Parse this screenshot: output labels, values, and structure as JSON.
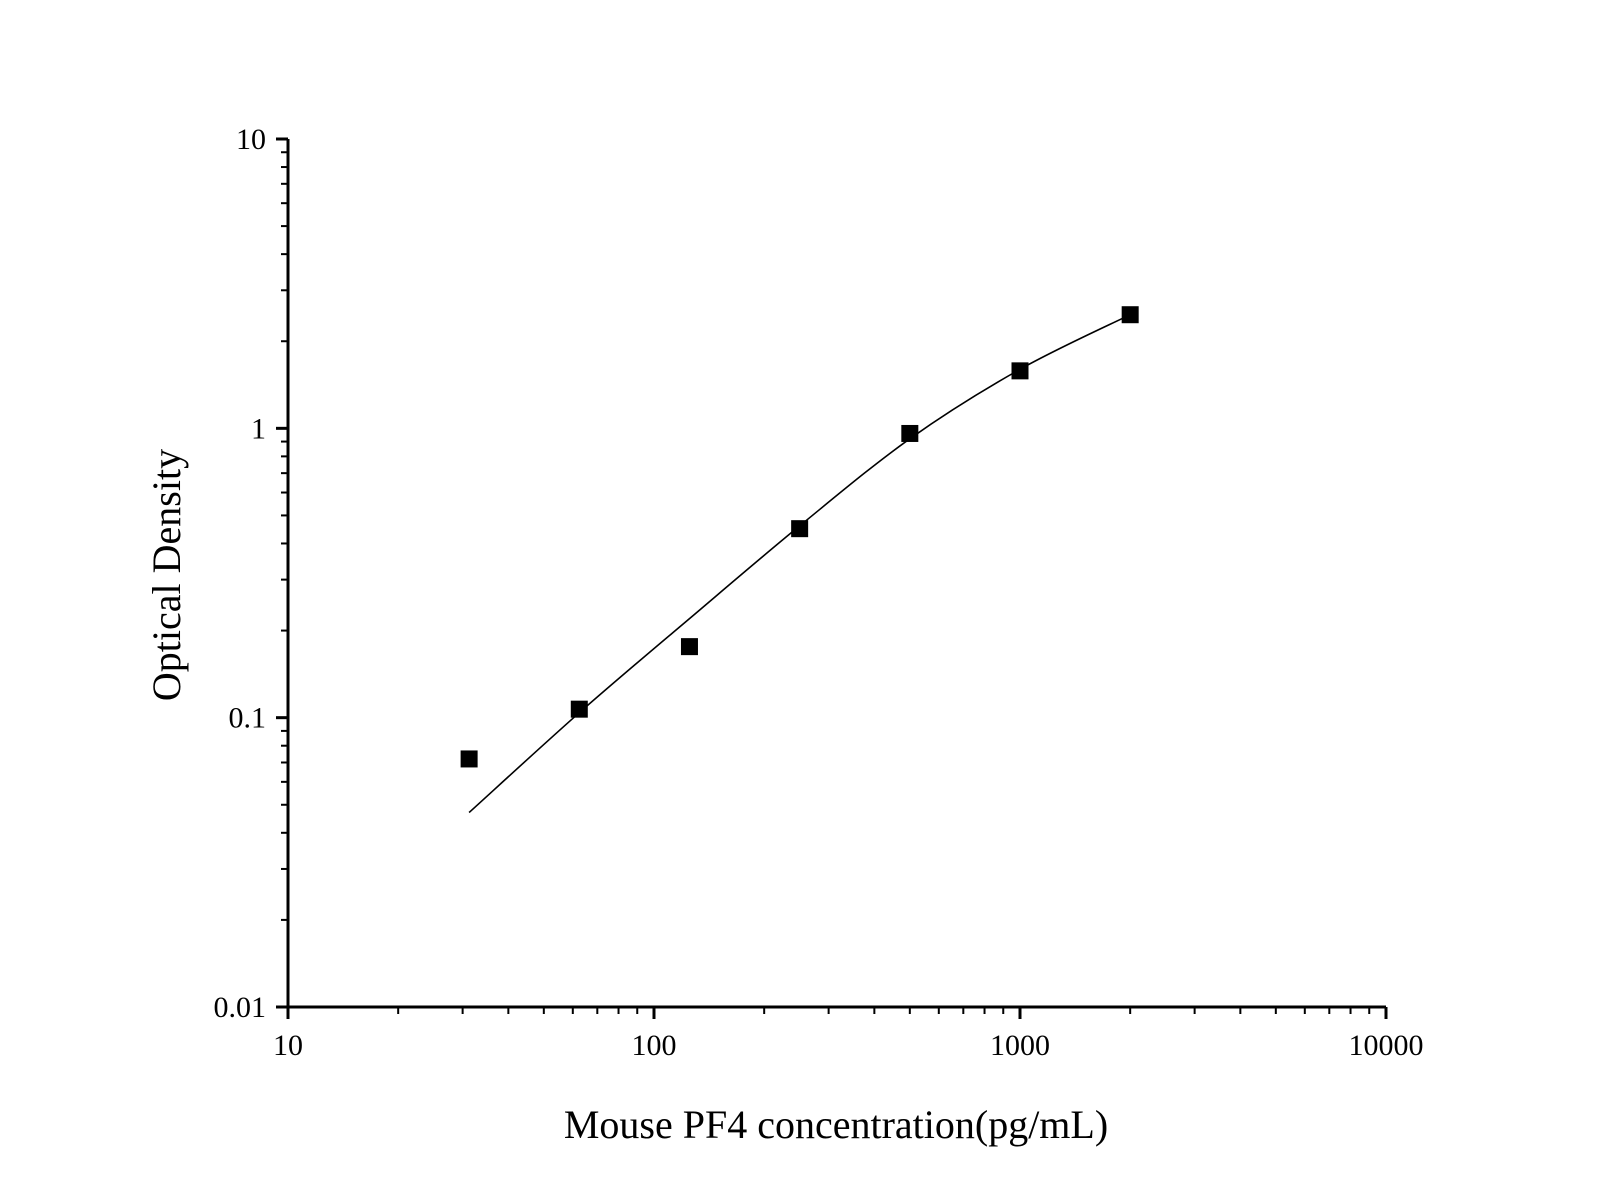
{
  "chart_data": {
    "type": "scatter",
    "xlabel": "Mouse PF4 concentration(pg/mL)",
    "ylabel": "Optical Density",
    "x_scale": "log",
    "y_scale": "log",
    "xlim": [
      10,
      10000
    ],
    "ylim": [
      0.01,
      10
    ],
    "x_ticks": [
      "10",
      "100",
      "1000",
      "10000"
    ],
    "y_ticks": [
      "0.01",
      "0.1",
      "1",
      "10"
    ],
    "grid": false,
    "legend": "none",
    "series": [
      {
        "marker": "square",
        "color": "#000000",
        "points": [
          {
            "x": 31.25,
            "y": 0.072
          },
          {
            "x": 62.5,
            "y": 0.107
          },
          {
            "x": 125,
            "y": 0.176
          },
          {
            "x": 250,
            "y": 0.45
          },
          {
            "x": 500,
            "y": 0.96
          },
          {
            "x": 1000,
            "y": 1.58
          },
          {
            "x": 2000,
            "y": 2.47
          }
        ]
      }
    ],
    "fit_curve": {
      "color": "#000000",
      "points": [
        {
          "x": 31.25,
          "y": 0.047
        },
        {
          "x": 62.5,
          "y": 0.104
        },
        {
          "x": 125,
          "y": 0.22
        },
        {
          "x": 250,
          "y": 0.46
        },
        {
          "x": 500,
          "y": 0.92
        },
        {
          "x": 1000,
          "y": 1.6
        },
        {
          "x": 2000,
          "y": 2.47
        }
      ]
    }
  }
}
